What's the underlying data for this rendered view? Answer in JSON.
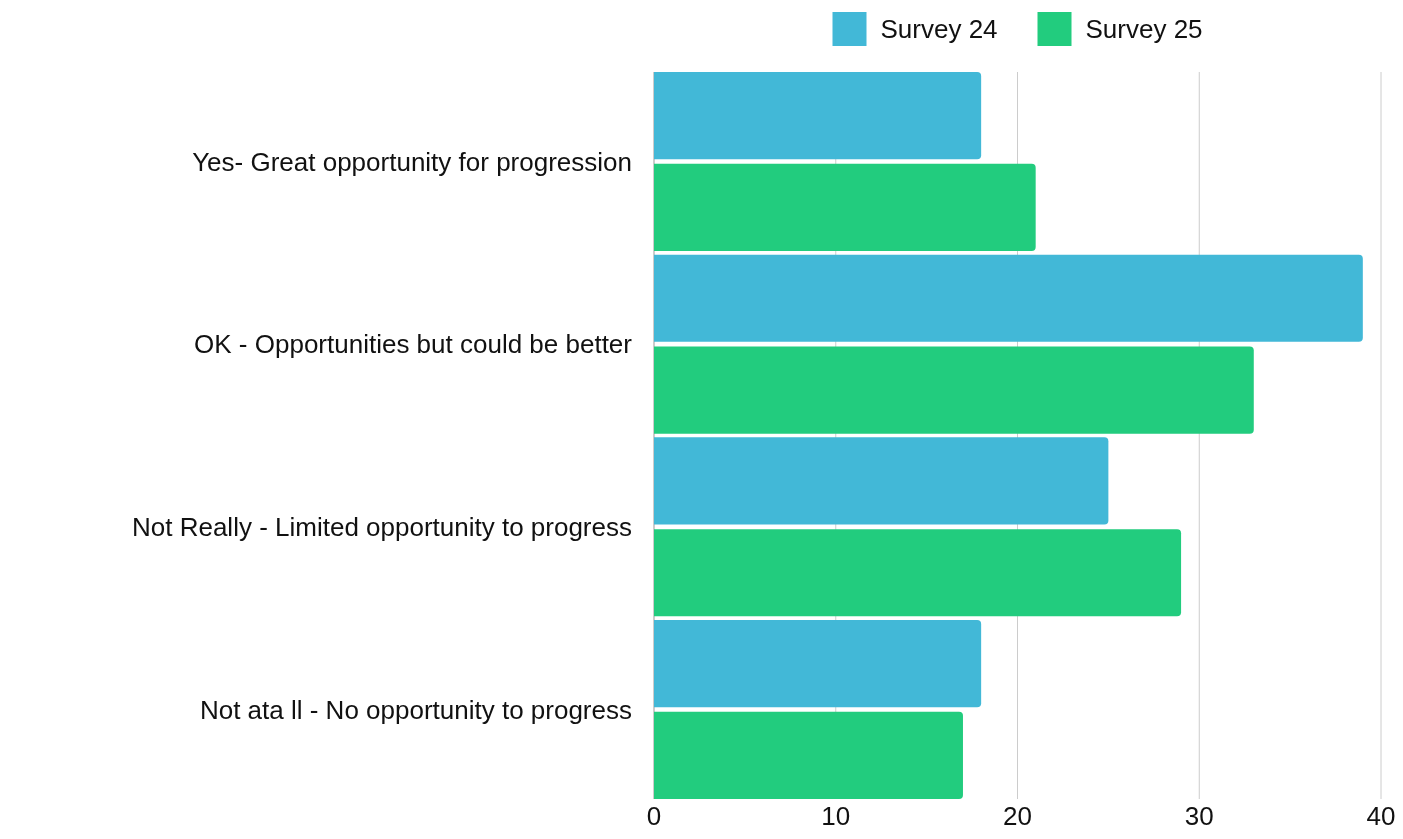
{
  "chart_data": {
    "type": "bar",
    "orientation": "horizontal",
    "categories": [
      "Yes- Great opportunity for progression",
      "OK - Opportunities but could be better",
      "Not Really - Limited opportunity to progress",
      "Not ata ll - No opportunity to progress"
    ],
    "series": [
      {
        "name": "Survey 24",
        "color": "#42b8d7",
        "values": [
          18,
          39,
          25,
          18
        ]
      },
      {
        "name": "Survey 25",
        "color": "#22cc7e",
        "values": [
          21,
          33,
          29,
          17
        ]
      }
    ],
    "xlim": [
      0,
      40
    ],
    "xticks": [
      0,
      10,
      20,
      30,
      40
    ],
    "grid": "x",
    "legend": "top"
  }
}
